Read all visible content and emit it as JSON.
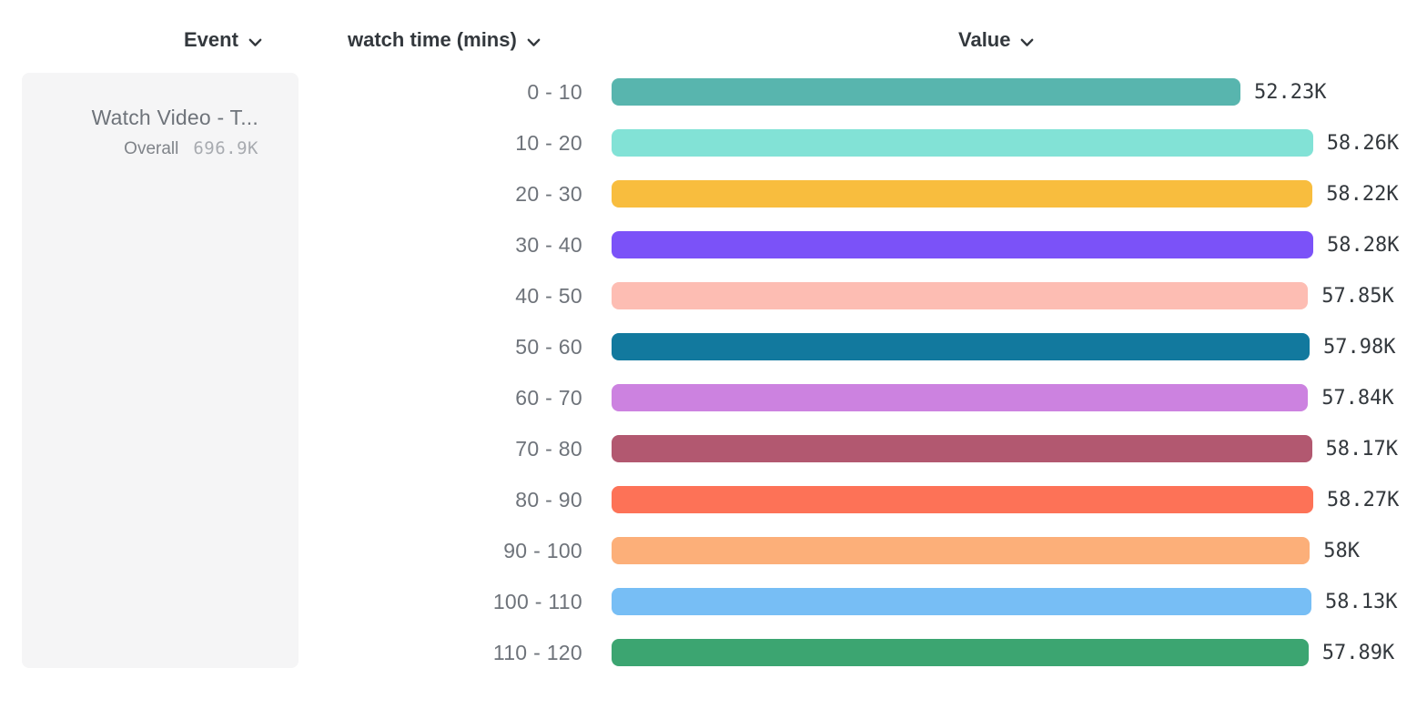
{
  "header": {
    "event": {
      "label": "Event"
    },
    "breakdown": {
      "label": "watch time (mins)"
    },
    "value": {
      "label": "Value"
    }
  },
  "legend": {
    "event_name": "Watch Video - T...",
    "overall_label": "Overall",
    "overall_value": "696.9K"
  },
  "chart_data": {
    "type": "bar",
    "orientation": "horizontal",
    "title": "",
    "series_name": "Watch Video - Overall 696.9K",
    "xlabel": "Value",
    "ylabel": "watch time (mins)",
    "categories": [
      "0 - 10",
      "10 - 20",
      "20 - 30",
      "30 - 40",
      "40 - 50",
      "50 - 60",
      "60 - 70",
      "70 - 80",
      "80 - 90",
      "90 - 100",
      "100 - 110",
      "110 - 120"
    ],
    "values": [
      52230,
      58260,
      58220,
      58280,
      57850,
      57980,
      57840,
      58170,
      58270,
      58000,
      58130,
      57890
    ],
    "value_labels": [
      "52.23K",
      "58.26K",
      "58.22K",
      "58.28K",
      "57.85K",
      "57.98K",
      "57.84K",
      "58.17K",
      "58.27K",
      "58K",
      "58.13K",
      "57.89K"
    ],
    "colors": [
      "#58b5ae",
      "#82e2d6",
      "#f8bd3e",
      "#7b52f8",
      "#fdbdb3",
      "#12799e",
      "#cc82e0",
      "#b25870",
      "#fd7257",
      "#fcaf79",
      "#77bef5",
      "#3ca571"
    ],
    "xlim": [
      0,
      58280
    ],
    "grid": false,
    "legend_position": "left",
    "text_color": "#33383d",
    "label_color": "#6e737a"
  }
}
